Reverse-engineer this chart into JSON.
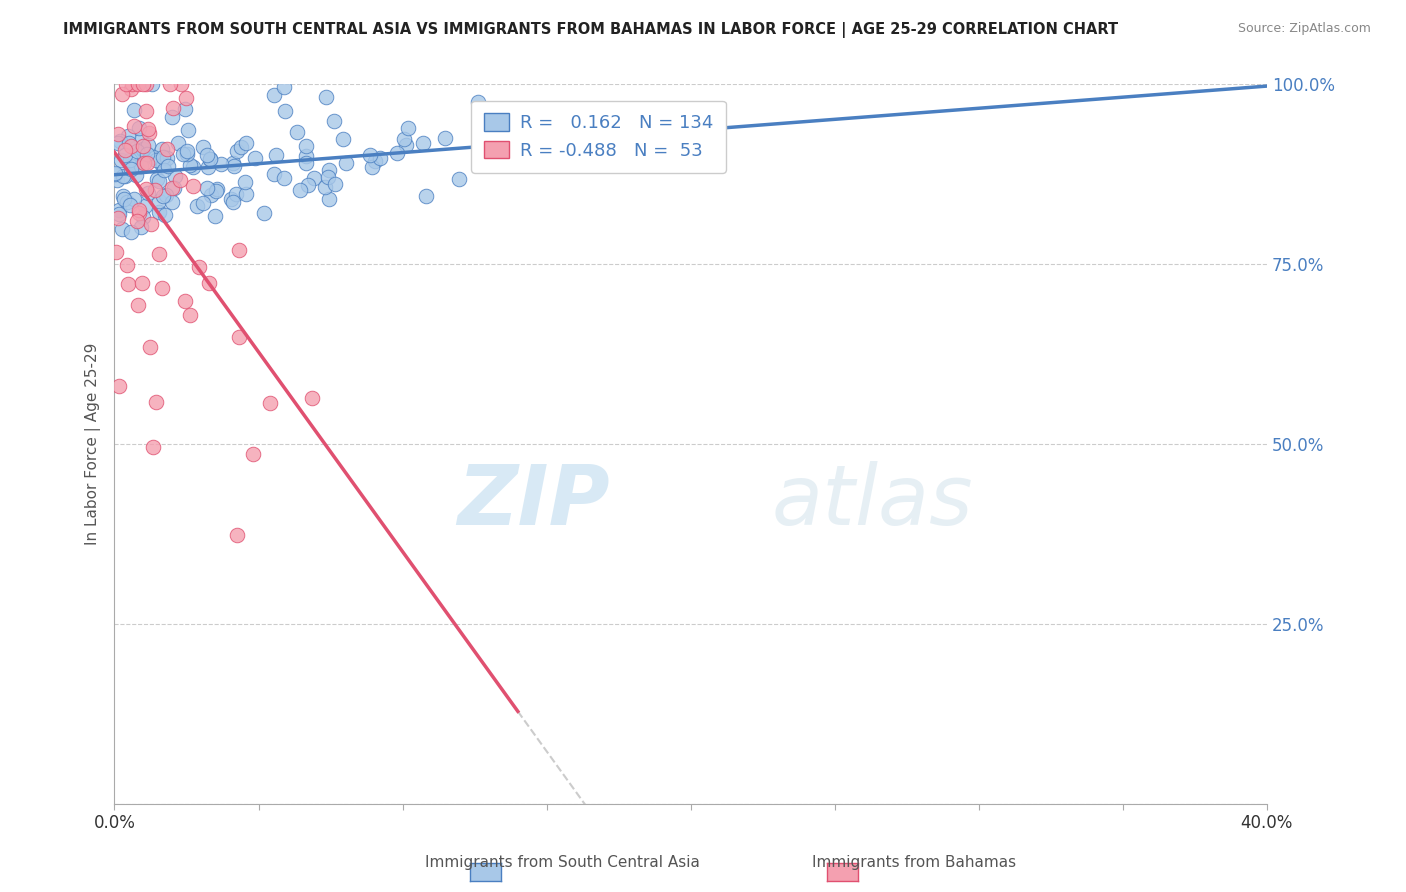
{
  "title": "IMMIGRANTS FROM SOUTH CENTRAL ASIA VS IMMIGRANTS FROM BAHAMAS IN LABOR FORCE | AGE 25-29 CORRELATION CHART",
  "source": "Source: ZipAtlas.com",
  "xlabel_legend1": "Immigrants from South Central Asia",
  "xlabel_legend2": "Immigrants from Bahamas",
  "ylabel": "In Labor Force | Age 25-29",
  "xlim": [
    0.0,
    0.4
  ],
  "ylim": [
    0.0,
    1.0
  ],
  "r_blue": 0.162,
  "n_blue": 134,
  "r_pink": -0.488,
  "n_pink": 53,
  "blue_color": "#a8c8e8",
  "pink_color": "#f4a0b0",
  "blue_line_color": "#4a7fc1",
  "pink_line_color": "#e05070",
  "trendline_extend_color": "#cccccc",
  "watermark_zip": "ZIP",
  "watermark_atlas": "atlas",
  "seed_blue": 42,
  "seed_pink": 7
}
